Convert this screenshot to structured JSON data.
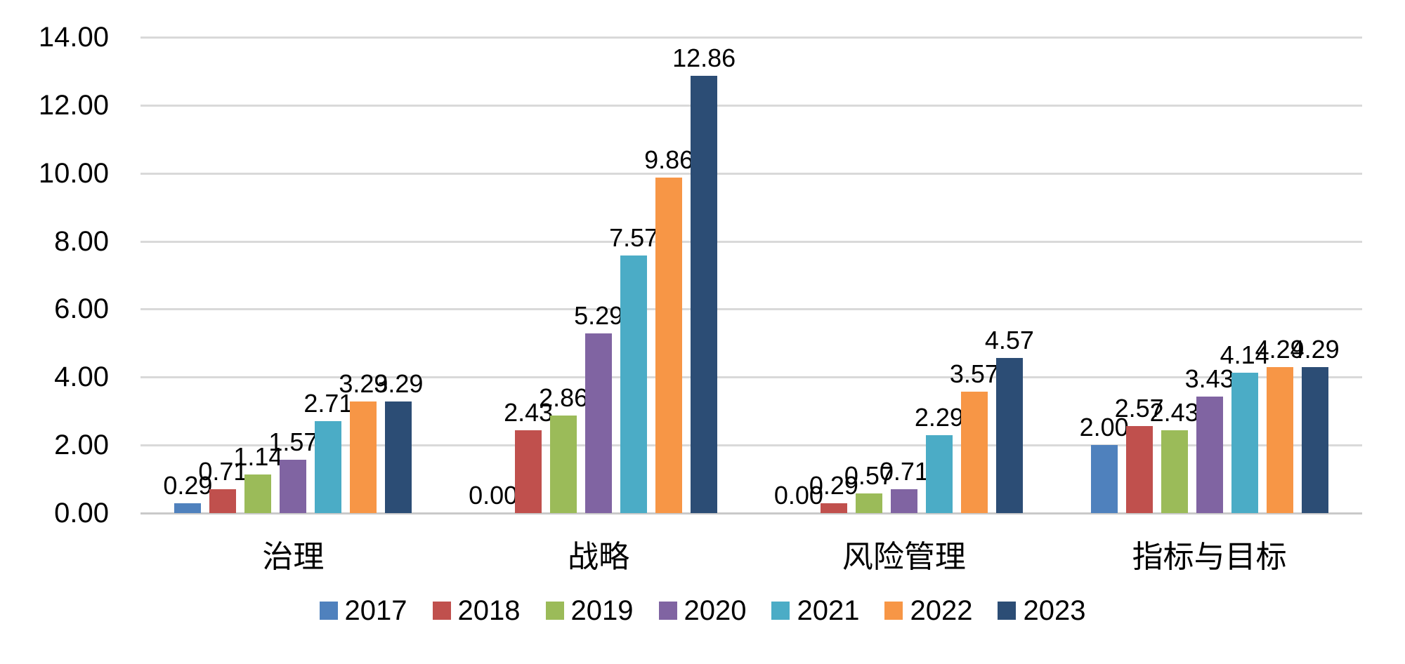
{
  "chart_data": {
    "type": "bar",
    "title": "",
    "categories": [
      "治理",
      "战略",
      "风险管理",
      "指标与目标"
    ],
    "series": [
      {
        "name": "2017",
        "color": "#4F81BD",
        "values": [
          0.29,
          0.0,
          0.0,
          2.0
        ]
      },
      {
        "name": "2018",
        "color": "#C0504D",
        "values": [
          0.71,
          2.43,
          0.29,
          2.57
        ]
      },
      {
        "name": "2019",
        "color": "#9BBB59",
        "values": [
          1.14,
          2.86,
          0.57,
          2.43
        ]
      },
      {
        "name": "2020",
        "color": "#8064A2",
        "values": [
          1.57,
          5.29,
          0.71,
          3.43
        ]
      },
      {
        "name": "2021",
        "color": "#4BACC6",
        "values": [
          2.71,
          7.57,
          2.29,
          4.14
        ]
      },
      {
        "name": "2022",
        "color": "#F79646",
        "values": [
          3.29,
          9.86,
          3.57,
          4.29
        ]
      },
      {
        "name": "2023",
        "color": "#2C4D75",
        "values": [
          3.29,
          12.86,
          4.57,
          4.29
        ]
      }
    ],
    "xlabel": "",
    "ylabel": "",
    "ylim": [
      0,
      14
    ],
    "ytick_step": 2,
    "ytick_labels": [
      "0.00",
      "2.00",
      "4.00",
      "6.00",
      "8.00",
      "10.00",
      "12.00",
      "14.00"
    ],
    "value_label_decimals": 2,
    "grid": true,
    "gridline_color": "#d9d9d9",
    "legend_position": "bottom",
    "text_color": "#000000",
    "background_color": "#ffffff"
  }
}
